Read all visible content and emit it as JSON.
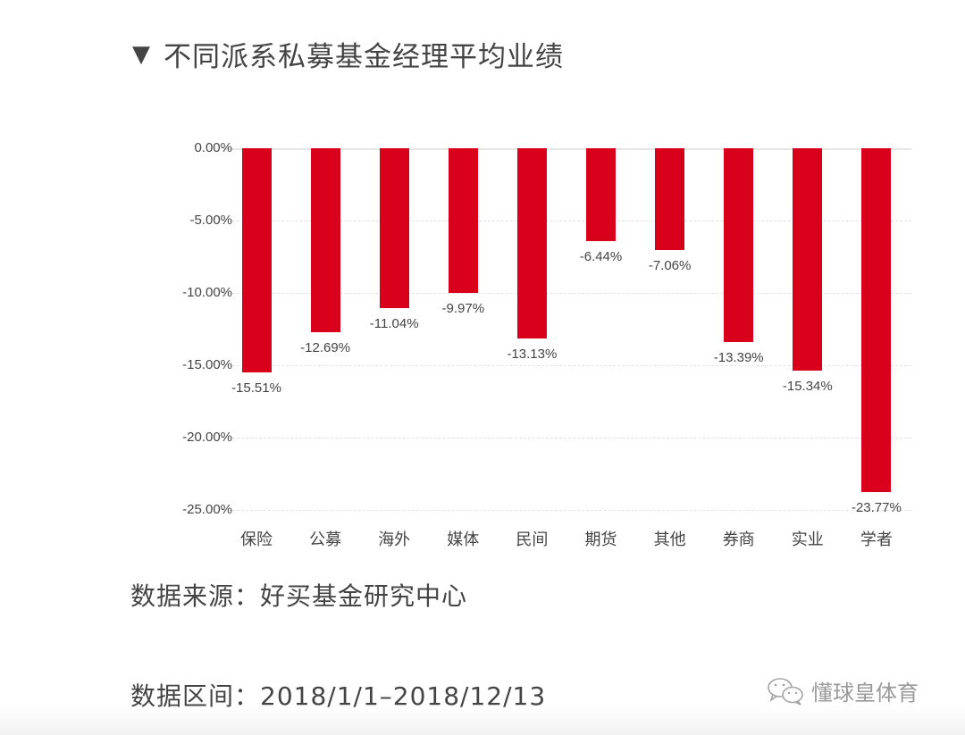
{
  "title": {
    "marker": "▼",
    "text": "不同派系私募基金经理平均业绩"
  },
  "chart_data": {
    "type": "bar",
    "title": "不同派系私募基金经理平均业绩",
    "xlabel": "",
    "ylabel": "",
    "categories": [
      "保险",
      "公募",
      "海外",
      "媒体",
      "民间",
      "期货",
      "其他",
      "券商",
      "实业",
      "学者"
    ],
    "values": [
      -15.51,
      -12.69,
      -11.04,
      -9.97,
      -13.13,
      -6.44,
      -7.06,
      -13.39,
      -15.34,
      -23.77
    ],
    "value_labels": [
      "-15.51%",
      "-12.69%",
      "-11.04%",
      "-9.97%",
      "-13.13%",
      "-6.44%",
      "-7.06%",
      "-13.39%",
      "-15.34%",
      "-23.77%"
    ],
    "y_ticks": [
      "0.00%",
      "-5.00%",
      "-10.00%",
      "-15.00%",
      "-20.00%",
      "-25.00%"
    ],
    "ylim": [
      -25,
      0
    ],
    "grid": true,
    "legend": null,
    "bar_color": "#d9001b"
  },
  "footer": {
    "source": "数据来源：好买基金研究中心",
    "period": "数据区间：2018/1/1–2018/12/13"
  },
  "watermark": {
    "icon": "wechat-icon",
    "text": "懂球皇体育"
  }
}
